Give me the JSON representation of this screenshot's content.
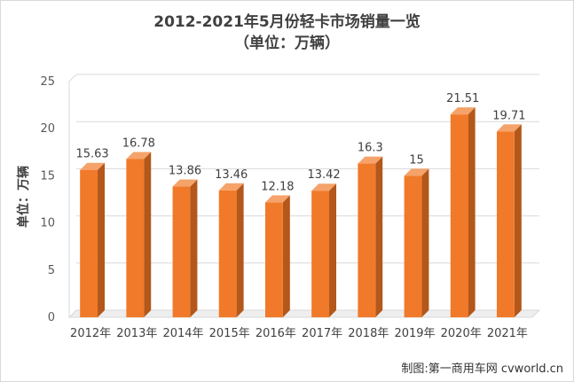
{
  "chart_data": {
    "type": "bar",
    "title": "2012-2021年5月份轻卡市场销量一览",
    "subtitle": "（单位：万辆）",
    "xlabel": "",
    "ylabel": "单位：万辆",
    "categories": [
      "2012年",
      "2013年",
      "2014年",
      "2015年",
      "2016年",
      "2017年",
      "2018年",
      "2019年",
      "2020年",
      "2021年"
    ],
    "values": [
      15.63,
      16.78,
      13.86,
      13.46,
      12.18,
      13.42,
      16.3,
      15,
      21.51,
      19.71
    ],
    "value_labels": [
      "15.63",
      "16.78",
      "13.86",
      "13.46",
      "12.18",
      "13.42",
      "16.3",
      "15",
      "21.51",
      "19.71"
    ],
    "ylim": [
      0,
      25
    ],
    "yticks": [
      "0",
      "5",
      "10",
      "15",
      "20",
      "25"
    ],
    "grid": true,
    "legend": "none",
    "bar_color": "#f07a2a",
    "bar_side_color": "#b4571a",
    "bar_top_color": "#f5a36a"
  },
  "credit": "制图:第一商用车网 cvworld.cn"
}
